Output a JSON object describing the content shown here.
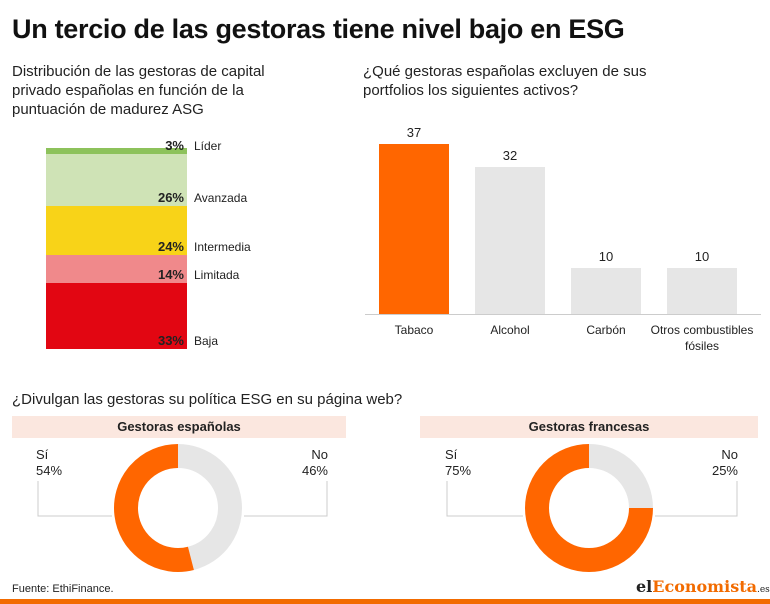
{
  "title": "Un tercio de las gestoras tiene nivel bajo en ESG",
  "source": "Fuente: EthiFinance.",
  "logo": {
    "part1": "el",
    "part2": "Economista",
    "part3": ".es"
  },
  "colors": {
    "accent": "#ff6600",
    "grey": "#e6e6e6",
    "band": "#fbe7df"
  },
  "chart_data": [
    {
      "type": "bar",
      "variant": "stacked-100",
      "title": "Distribución de las gestoras de capital privado españolas en función de la puntuación de madurez ASG",
      "categories": [
        "Líder",
        "Avanzada",
        "Intermedia",
        "Limitada",
        "Baja"
      ],
      "values": [
        3,
        26,
        24,
        14,
        33
      ],
      "value_labels": [
        "3%",
        "26%",
        "24%",
        "14%",
        "33%"
      ],
      "colors": [
        "#8dc25b",
        "#cfe3b6",
        "#f8d318",
        "#f0898b",
        "#e20612"
      ]
    },
    {
      "type": "bar",
      "title": "¿Qué gestoras españolas excluyen de sus portfolios los siguientes activos?",
      "categories": [
        "Tabaco",
        "Alcohol",
        "Carbón",
        "Otros combustibles fósiles"
      ],
      "values": [
        37,
        32,
        10,
        10
      ],
      "ylim": [
        0,
        37
      ],
      "colors": [
        "#ff6600",
        "#e6e6e6",
        "#e6e6e6",
        "#e6e6e6"
      ]
    },
    {
      "type": "pie",
      "variant": "donut",
      "section_title": "¿Divulgan las gestoras su política ESG en su página web?",
      "title": "Gestoras españolas",
      "labels": [
        "Sí",
        "No"
      ],
      "values": [
        54,
        46
      ],
      "value_labels": [
        "54%",
        "46%"
      ],
      "colors": [
        "#ff6600",
        "#e6e6e6"
      ]
    },
    {
      "type": "pie",
      "variant": "donut",
      "title": "Gestoras francesas",
      "labels": [
        "Sí",
        "No"
      ],
      "values": [
        75,
        25
      ],
      "value_labels": [
        "75%",
        "25%"
      ],
      "colors": [
        "#ff6600",
        "#e6e6e6"
      ]
    }
  ]
}
